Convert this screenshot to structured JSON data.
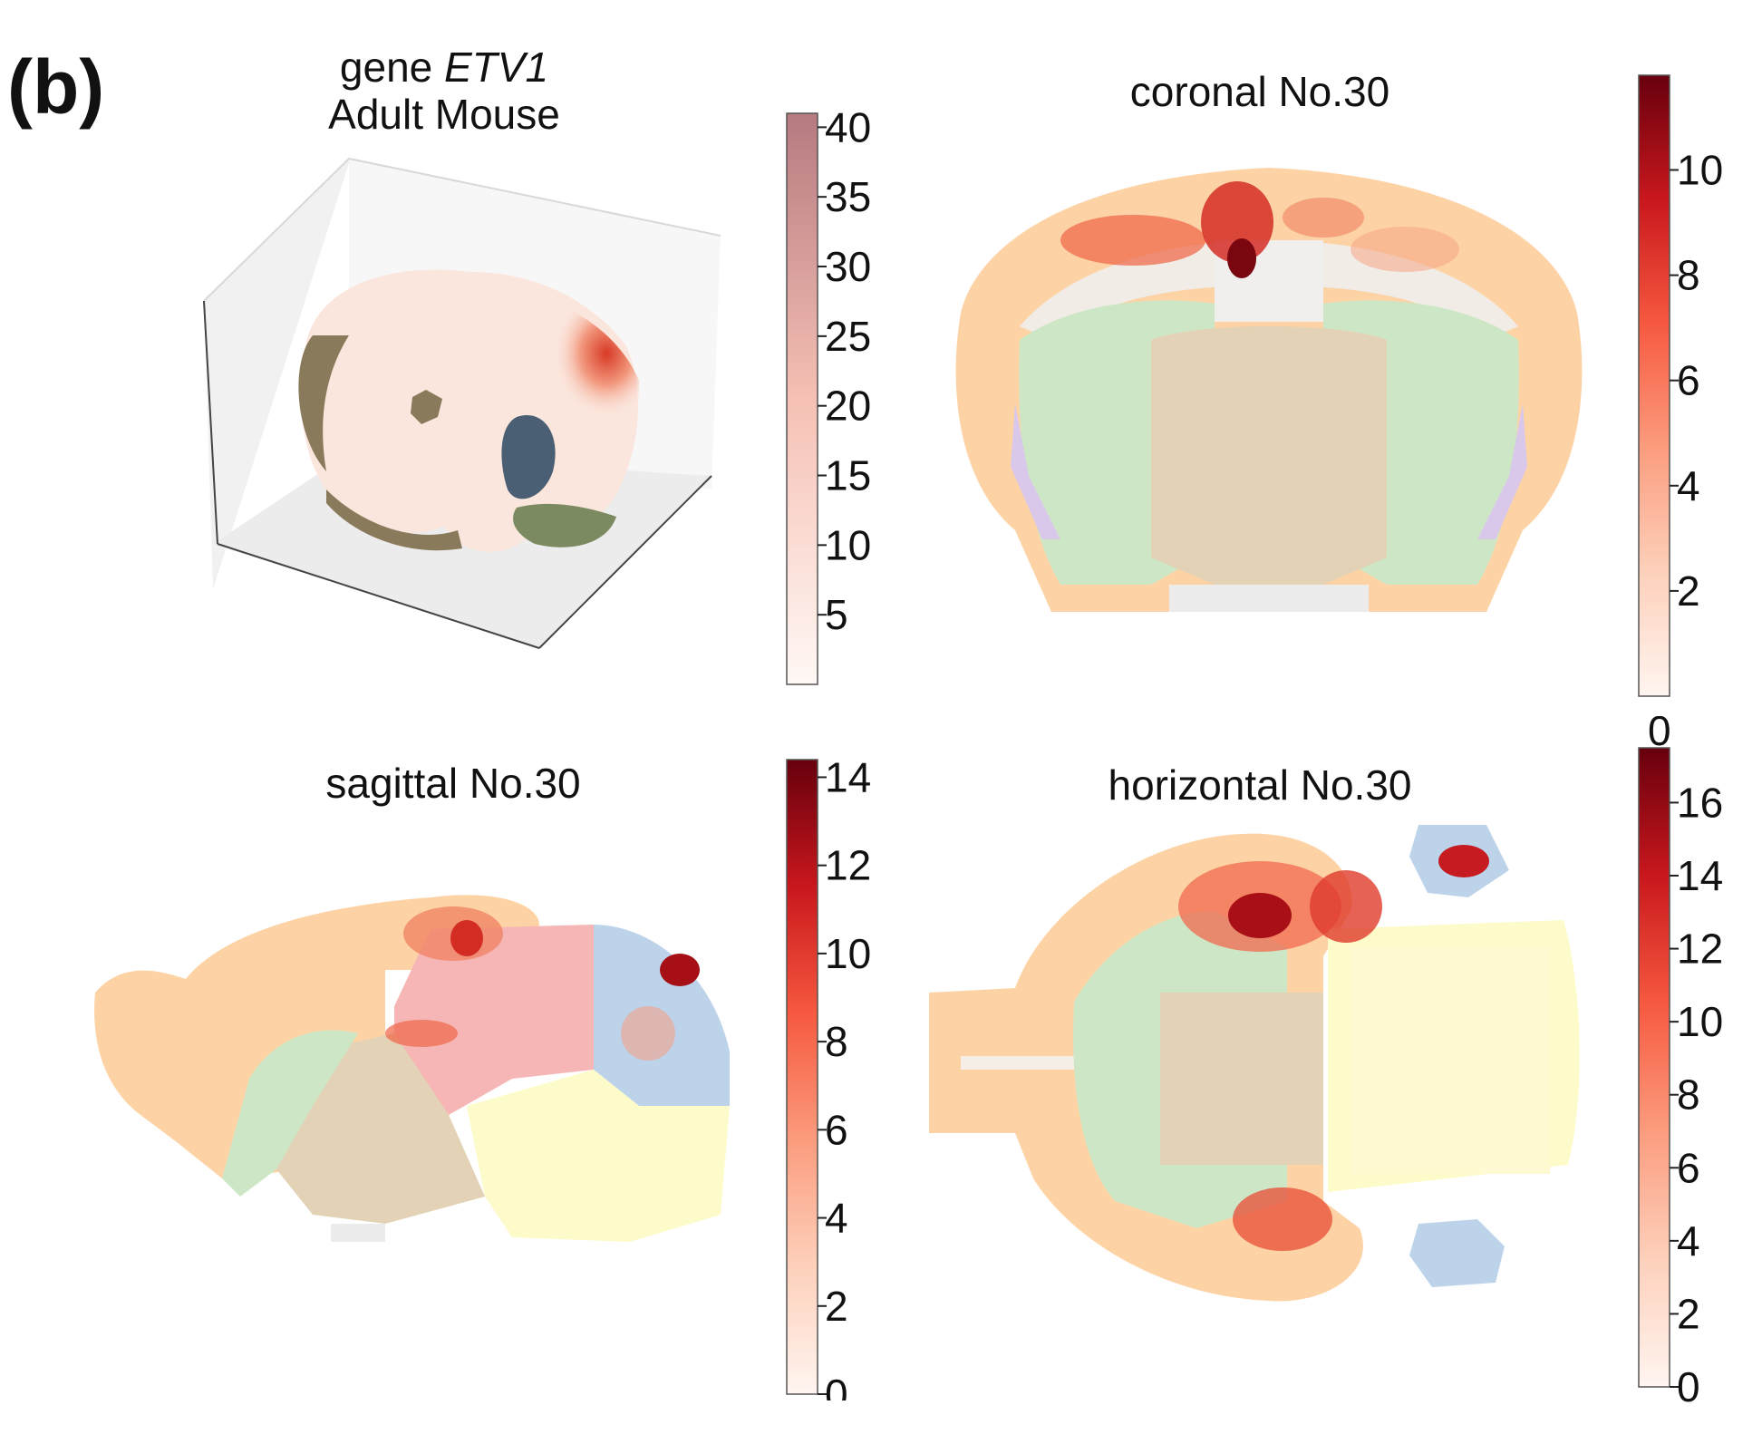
{
  "figure": {
    "panel_label": "(b)"
  },
  "chart_data": [
    {
      "type": "heatmap",
      "view": "3d",
      "title_line1_prefix": "gene ",
      "title_line1_gene": "ETV1",
      "title_line2": "Adult Mouse",
      "colormap": "Reds",
      "colorbar_ticks": [
        5,
        10,
        15,
        20,
        25,
        30,
        35,
        40
      ],
      "colorbar_range": [
        0,
        41
      ],
      "region_colors": [
        "#8a7a5c",
        "#4a5f73",
        "#7b8a60"
      ],
      "hotspot_value": 38
    },
    {
      "type": "heatmap",
      "view": "coronal",
      "title": "coronal No.30",
      "colormap": "Reds",
      "colorbar_ticks": [
        2,
        4,
        6,
        8,
        10
      ],
      "colorbar_range": [
        0,
        11.8
      ],
      "max_value": 11.8
    },
    {
      "type": "heatmap",
      "view": "sagittal",
      "title": "sagittal No.30",
      "colormap": "Reds",
      "colorbar_ticks": [
        0,
        2,
        4,
        6,
        8,
        10,
        12,
        14
      ],
      "colorbar_range": [
        0,
        14.4
      ],
      "max_value": 14.4
    },
    {
      "type": "heatmap",
      "view": "horizontal",
      "title": "horizontal No.30",
      "colormap": "Reds",
      "colorbar_ticks": [
        0,
        2,
        4,
        6,
        8,
        10,
        12,
        14,
        16
      ],
      "colorbar_extra_top_label": "0",
      "colorbar_range": [
        0,
        17.5
      ],
      "max_value": 17.5
    }
  ],
  "region_palette": {
    "cortex": "#fdd3a5",
    "striatum": "#c8e6c0",
    "thalamus": "#e3d2b6",
    "white_matter": "#ececec",
    "midbrain": "#f6b6b6",
    "cerebellum": "#bcd3ea",
    "hindbrain": "#fdfbc9",
    "boundary": "#d9c8ea"
  }
}
